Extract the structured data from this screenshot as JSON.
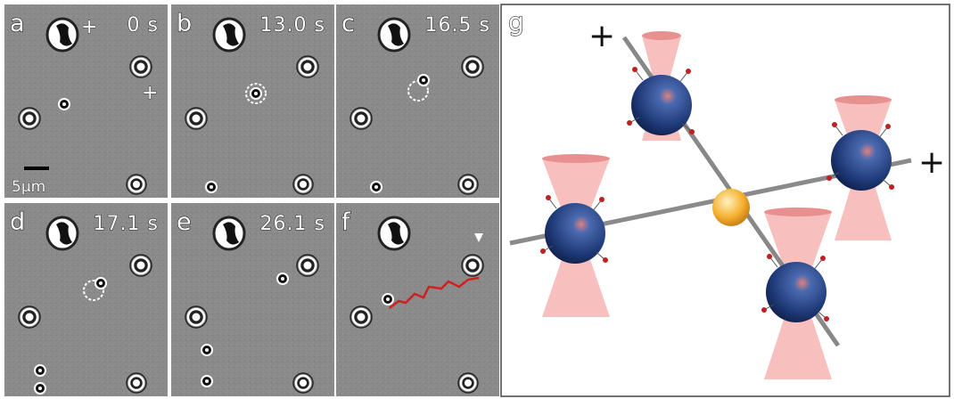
{
  "panels": [
    {
      "label": "a",
      "time": "0 s"
    },
    {
      "label": "b",
      "time": "13.0 s"
    },
    {
      "label": "c",
      "time": "16.5 s"
    },
    {
      "label": "d",
      "time": "17.1 s"
    },
    {
      "label": "e",
      "time": "26.1 s"
    },
    {
      "label": "f"
    }
  ],
  "panel_a_markers": [
    "+",
    "+"
  ],
  "scale_bar": "5μm",
  "diagram": {
    "label": "g",
    "plus_markers": [
      "+",
      "+"
    ]
  }
}
